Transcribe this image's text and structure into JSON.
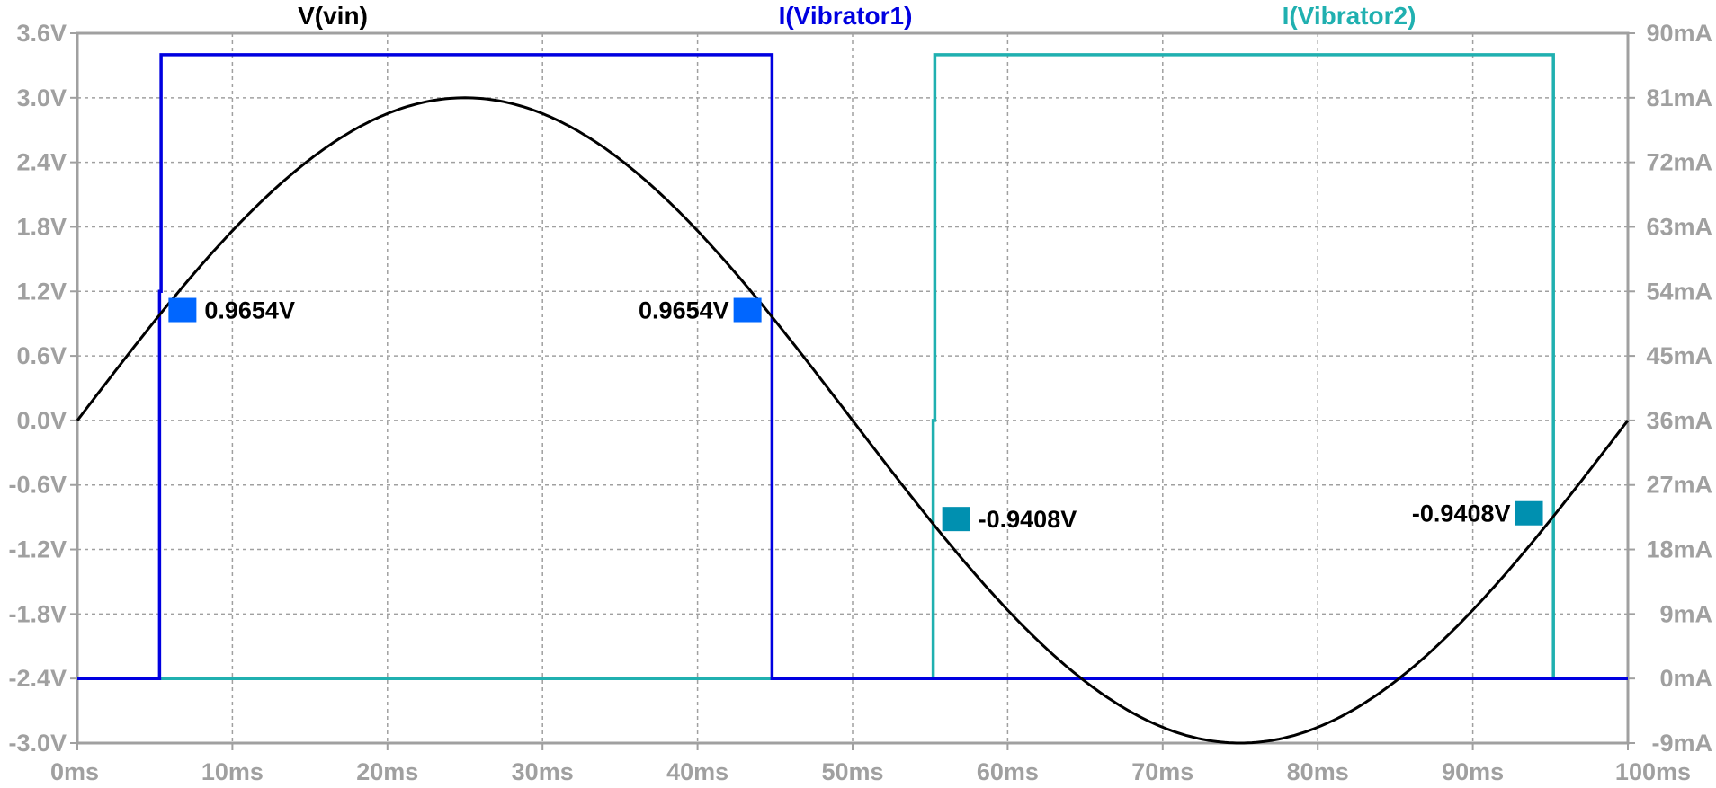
{
  "chart_data": {
    "type": "line",
    "x_axis": {
      "ticks": [
        "0ms",
        "10ms",
        "20ms",
        "30ms",
        "40ms",
        "50ms",
        "60ms",
        "70ms",
        "80ms",
        "90ms",
        "100ms"
      ],
      "range_ms": [
        0,
        100
      ],
      "grid": true
    },
    "y_left": {
      "ticks": [
        "-3.0V",
        "-2.4V",
        "-1.8V",
        "-1.2V",
        "-0.6V",
        "0.0V",
        "0.6V",
        "1.2V",
        "1.8V",
        "2.4V",
        "3.0V",
        "3.6V"
      ],
      "range": [
        -3.0,
        3.6
      ],
      "unit": "V"
    },
    "y_right": {
      "ticks": [
        "-9mA",
        "0mA",
        "9mA",
        "18mA",
        "27mA",
        "36mA",
        "45mA",
        "54mA",
        "63mA",
        "72mA",
        "81mA",
        "90mA"
      ],
      "range": [
        -9,
        90
      ],
      "unit": "mA"
    },
    "series": [
      {
        "name": "V(vin)",
        "axis": "left",
        "color": "#000000",
        "kind": "sine",
        "amplitude_V": 3.0,
        "period_ms": 100
      },
      {
        "name": "I(Vibrator1)",
        "axis": "right",
        "color": "#0000e0",
        "points_ms_mA": [
          [
            0,
            0
          ],
          [
            5.3,
            0
          ],
          [
            5.3,
            54
          ],
          [
            5.4,
            54
          ],
          [
            5.4,
            87
          ],
          [
            44.8,
            87
          ],
          [
            44.8,
            0
          ],
          [
            100,
            0
          ]
        ]
      },
      {
        "name": "I(Vibrator2)",
        "axis": "right",
        "color": "#20b0b0",
        "points_ms_mA": [
          [
            0,
            0
          ],
          [
            55.2,
            0
          ],
          [
            55.2,
            36
          ],
          [
            55.3,
            36
          ],
          [
            55.3,
            87
          ],
          [
            95.2,
            87
          ],
          [
            95.2,
            0
          ],
          [
            100,
            0
          ]
        ]
      }
    ],
    "cursors": [
      {
        "label": "0.9654V",
        "x_ms": 5.3,
        "color": "#0066ff",
        "label_side": "right"
      },
      {
        "label": "0.9654V",
        "x_ms": 44.7,
        "color": "#0066ff",
        "label_side": "left"
      },
      {
        "label": "-0.9408V",
        "x_ms": 55.2,
        "color": "#0090b0",
        "label_side": "right"
      },
      {
        "label": "-0.9408V",
        "x_ms": 95.1,
        "color": "#0090b0",
        "label_side": "left"
      }
    ]
  }
}
